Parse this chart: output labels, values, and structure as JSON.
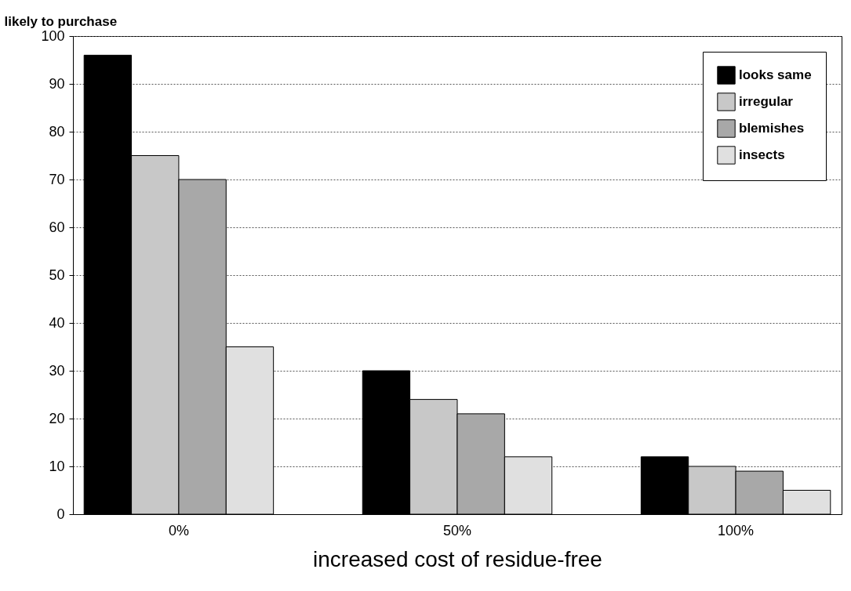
{
  "chart_data": {
    "type": "bar",
    "xlabel": "increased cost of residue-free",
    "ylabel": "likely to purchase",
    "categories": [
      "0%",
      "50%",
      "100%"
    ],
    "series": [
      {
        "name": "looks same",
        "color": "#000000",
        "values": [
          96,
          30,
          12
        ]
      },
      {
        "name": "irregular",
        "color": "#c8c8c8",
        "values": [
          75,
          24,
          10
        ]
      },
      {
        "name": "blemishes",
        "color": "#a8a8a8",
        "values": [
          70,
          21,
          9
        ]
      },
      {
        "name": "insects",
        "color": "#e0e0e0",
        "values": [
          35,
          12,
          5
        ]
      }
    ],
    "ylim": [
      0,
      100
    ],
    "yticks": [
      0,
      10,
      20,
      30,
      40,
      50,
      60,
      70,
      80,
      90,
      100
    ],
    "grid": "y",
    "legend": "top right"
  }
}
